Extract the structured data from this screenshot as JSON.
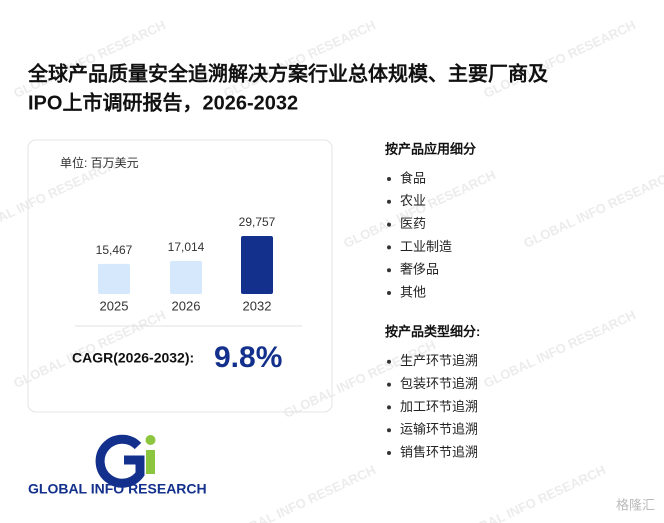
{
  "header": {
    "title_line1": "全球产品质量安全追溯解决方案行业总体规模、主要厂商及",
    "title_line2": "IPO上市调研报告，2026-2032"
  },
  "chart_data": {
    "type": "bar",
    "unit": "单位: 百万美元",
    "categories": [
      "2025",
      "2026",
      "2032"
    ],
    "values": [
      15467,
      17014,
      29757
    ],
    "value_labels": [
      "15,467",
      "17,014",
      "29,757"
    ],
    "colors": [
      "#d6e8fb",
      "#d6e8fb",
      "#13308c"
    ]
  },
  "cagr": {
    "label": "CAGR(2026-2032):",
    "value": "9.8%"
  },
  "segments": [
    {
      "heading": "按产品应用细分",
      "items": [
        "食品",
        "农业",
        "医药",
        "工业制造",
        "奢侈品",
        "其他"
      ]
    },
    {
      "heading": "按产品类型细分:",
      "items": [
        "生产环节追溯",
        "包装环节追溯",
        "加工环节追溯",
        "运输环节追溯",
        "销售环节追溯"
      ]
    }
  ],
  "logo": {
    "text": "GLOBAL INFO RESEARCH"
  },
  "corner_brand": "格隆汇"
}
